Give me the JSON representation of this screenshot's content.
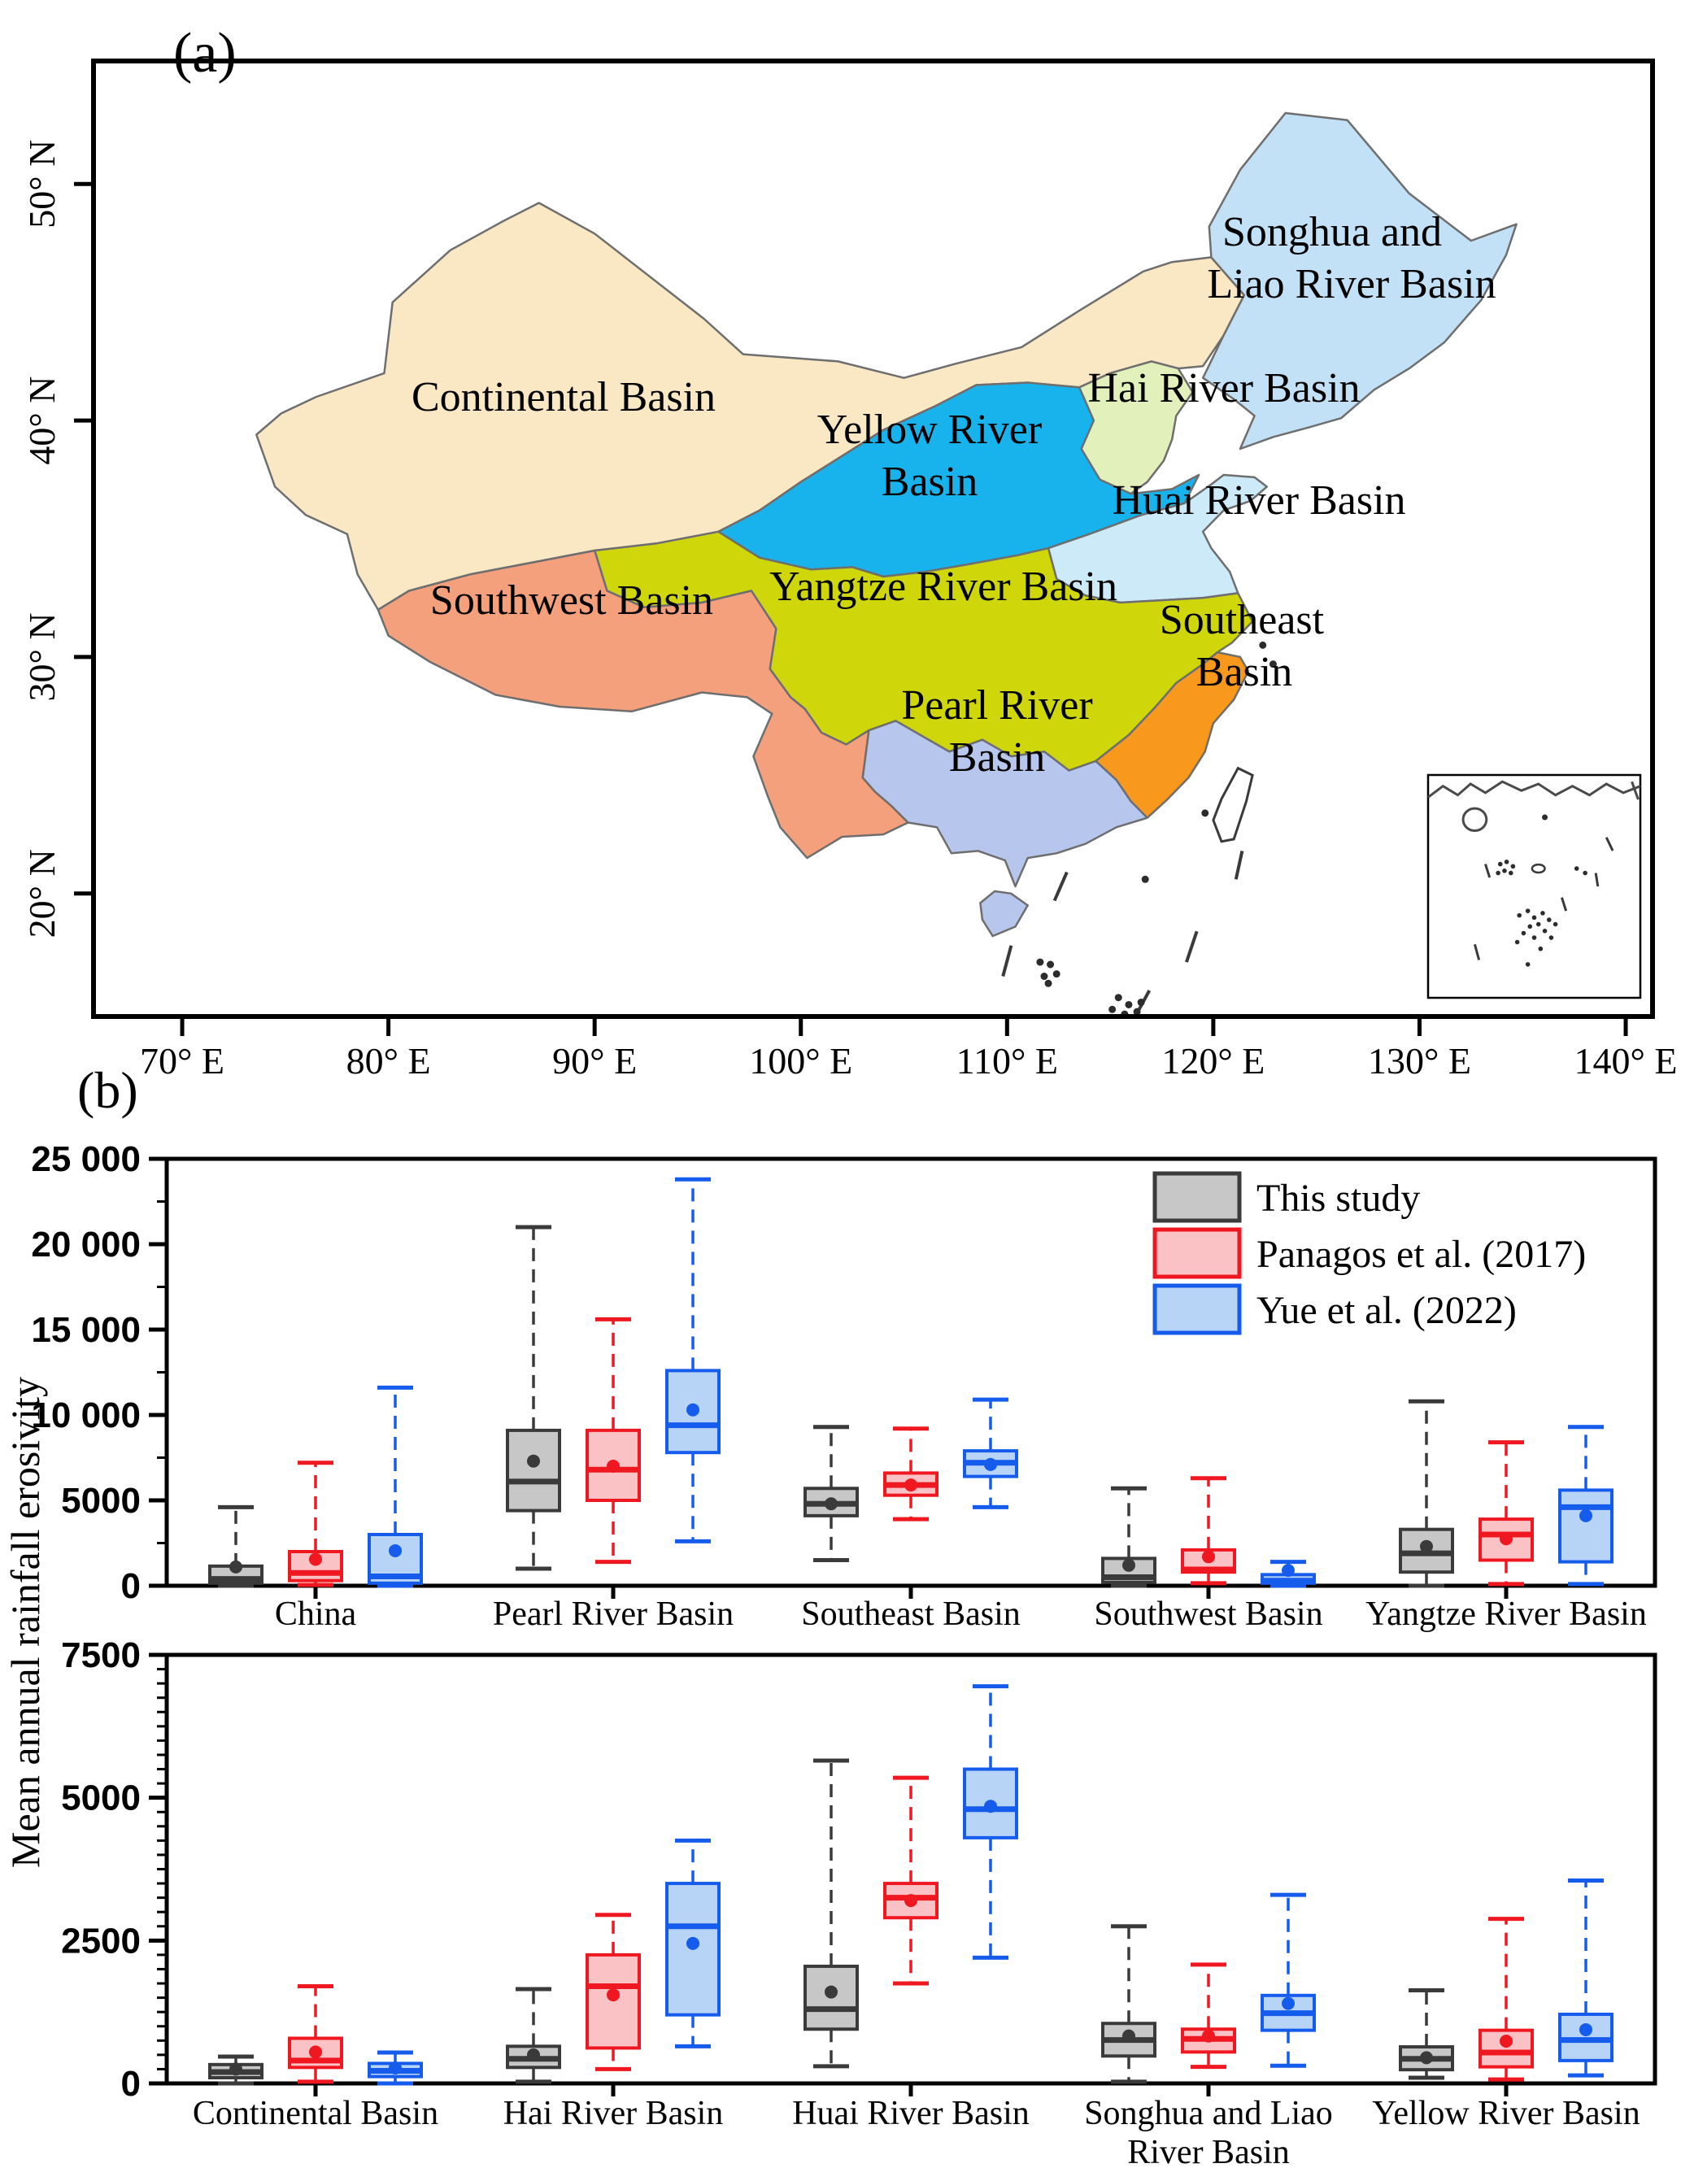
{
  "panel_a": {
    "label": "(a)",
    "x_tick_labels": [
      "70° E",
      "80° E",
      "90° E",
      "100° E",
      "110° E",
      "120° E",
      "130° E",
      "140° E"
    ],
    "y_tick_labels": [
      "20° N",
      "30° N",
      "40° N",
      "50° N"
    ],
    "outline_color": "#6E6E6E",
    "basins": [
      {
        "name": "Continental Basin",
        "label_lines": [
          "Continental Basin"
        ],
        "color": "#FAE8C5"
      },
      {
        "name": "Songhua and Liao River Basin",
        "label_lines": [
          "Songhua and",
          "Liao River Basin"
        ],
        "color": "#C2E1F6"
      },
      {
        "name": "Hai River Basin",
        "label_lines": [
          "Hai River Basin"
        ],
        "color": "#E2F0BC"
      },
      {
        "name": "Yellow River Basin",
        "label_lines": [
          "Yellow River",
          "Basin"
        ],
        "color": "#18B3EC"
      },
      {
        "name": "Huai River Basin",
        "label_lines": [
          "Huai River Basin"
        ],
        "color": "#CDEAF9"
      },
      {
        "name": "Yangtze River Basin",
        "label_lines": [
          "Yangtze River Basin"
        ],
        "color": "#CFD70A"
      },
      {
        "name": "Southwest Basin",
        "label_lines": [
          "Southwest Basin"
        ],
        "color": "#F5A07C"
      },
      {
        "name": "Southeast Basin",
        "label_lines": [
          "Southeast",
          "Basin"
        ],
        "color": "#F8981D"
      },
      {
        "name": "Pearl River Basin",
        "label_lines": [
          "Pearl River",
          "Basin"
        ],
        "color": "#B7C6EC"
      }
    ]
  },
  "panel_b": {
    "label": "(b)",
    "y_axis_title": "Mean annual rainfall erosivity",
    "legend": [
      {
        "label": "This study",
        "fill": "#C7C7C7",
        "line": "#3A3A3A"
      },
      {
        "label": "Panagos et al. (2017)",
        "fill": "#FBC2C5",
        "line": "#F01820"
      },
      {
        "label": "Yue et al. (2022)",
        "fill": "#B7D3F5",
        "line": "#155CEC"
      }
    ]
  },
  "chart_data": [
    {
      "type": "box",
      "title": "",
      "ylabel": "Mean annual rainfall erosivity",
      "ylim": [
        0,
        25000
      ],
      "y_major_step": 5000,
      "y_minor_step": 2500,
      "grid": false,
      "legend_position": "top-right",
      "y_tick_labels": [
        "0",
        "5000",
        "10 000",
        "15 000",
        "20 000",
        "25 000"
      ],
      "categories": [
        "China",
        "Pearl River Basin",
        "Southeast Basin",
        "Southwest Basin",
        "Yangtze River Basin"
      ],
      "category_label_lines": [
        [
          "China"
        ],
        [
          "Pearl River Basin"
        ],
        [
          "Southeast Basin"
        ],
        [
          "Southwest Basin"
        ],
        [
          "Yangtze River Basin"
        ]
      ],
      "value_keys": [
        "min",
        "q1",
        "median",
        "q3",
        "max",
        "mean"
      ],
      "series": [
        {
          "name": "This study",
          "data": [
            [
              0,
              150,
              400,
              1150,
              4600,
              1100
            ],
            [
              1000,
              4400,
              6100,
              9100,
              21000,
              7300
            ],
            [
              1500,
              4100,
              4800,
              5700,
              9300,
              4800
            ],
            [
              0,
              200,
              500,
              1600,
              5700,
              1200
            ],
            [
              0,
              800,
              1900,
              3300,
              10800,
              2300
            ]
          ]
        },
        {
          "name": "Panagos et al. (2017)",
          "data": [
            [
              50,
              300,
              750,
              2000,
              7200,
              1550
            ],
            [
              1400,
              5000,
              6800,
              9100,
              15600,
              7000
            ],
            [
              3900,
              5300,
              5900,
              6600,
              9200,
              5900
            ],
            [
              150,
              800,
              950,
              2100,
              6300,
              1700
            ],
            [
              100,
              1500,
              3000,
              3900,
              8400,
              2750
            ]
          ]
        },
        {
          "name": "Yue et al. (2022)",
          "data": [
            [
              0,
              150,
              550,
              3000,
              11600,
              2050
            ],
            [
              2600,
              7800,
              9400,
              12600,
              23800,
              10300
            ],
            [
              4600,
              6400,
              7200,
              7900,
              10900,
              7100
            ],
            [
              0,
              150,
              300,
              650,
              1400,
              900
            ],
            [
              100,
              1400,
              4600,
              5600,
              9300,
              4100
            ]
          ]
        }
      ]
    },
    {
      "type": "box",
      "title": "",
      "ylabel": "Mean annual rainfall erosivity",
      "ylim": [
        0,
        7500
      ],
      "y_major_step": 2500,
      "y_minor_step": 250,
      "grid": false,
      "y_tick_labels": [
        "0",
        "2500",
        "5000",
        "7500"
      ],
      "categories": [
        "Continental Basin",
        "Hai River Basin",
        "Huai River Basin",
        "Songhua and Liao River Basin",
        "Yellow River Basin"
      ],
      "category_label_lines": [
        [
          "Continental Basin"
        ],
        [
          "Hai River Basin"
        ],
        [
          "Huai River Basin"
        ],
        [
          "Songhua and Liao",
          "River Basin"
        ],
        [
          "Yellow River Basin"
        ]
      ],
      "value_keys": [
        "min",
        "q1",
        "median",
        "q3",
        "max",
        "mean"
      ],
      "series": [
        {
          "name": "This study",
          "data": [
            [
              0,
              100,
              200,
              330,
              470,
              250
            ],
            [
              30,
              280,
              430,
              650,
              1650,
              500
            ],
            [
              300,
              950,
              1300,
              2050,
              5650,
              1600
            ],
            [
              30,
              480,
              760,
              1050,
              2750,
              830
            ],
            [
              100,
              240,
              430,
              640,
              1630,
              450
            ]
          ]
        },
        {
          "name": "Panagos et al. (2017)",
          "data": [
            [
              30,
              280,
              400,
              790,
              1700,
              550
            ],
            [
              250,
              620,
              1700,
              2250,
              2950,
              1550
            ],
            [
              1750,
              2900,
              3250,
              3500,
              5350,
              3200
            ],
            [
              290,
              550,
              780,
              950,
              2080,
              830
            ],
            [
              70,
              290,
              540,
              930,
              2880,
              740
            ]
          ]
        },
        {
          "name": "Yue et al. (2022)",
          "data": [
            [
              0,
              120,
              220,
              350,
              540,
              270
            ],
            [
              650,
              1200,
              2750,
              3500,
              4250,
              2450
            ],
            [
              2200,
              4300,
              4800,
              5500,
              6950,
              4850
            ],
            [
              310,
              930,
              1230,
              1540,
              3300,
              1400
            ],
            [
              140,
              400,
              760,
              1210,
              3550,
              940
            ]
          ]
        }
      ]
    }
  ]
}
